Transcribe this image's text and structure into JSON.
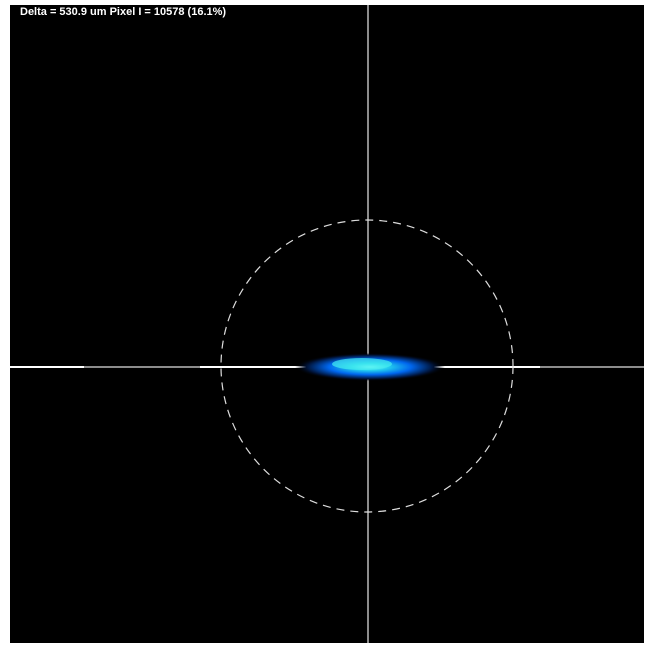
{
  "status": {
    "readout": "Delta = 530.9 um Pixel I = 10578 (16.1%)"
  }
}
